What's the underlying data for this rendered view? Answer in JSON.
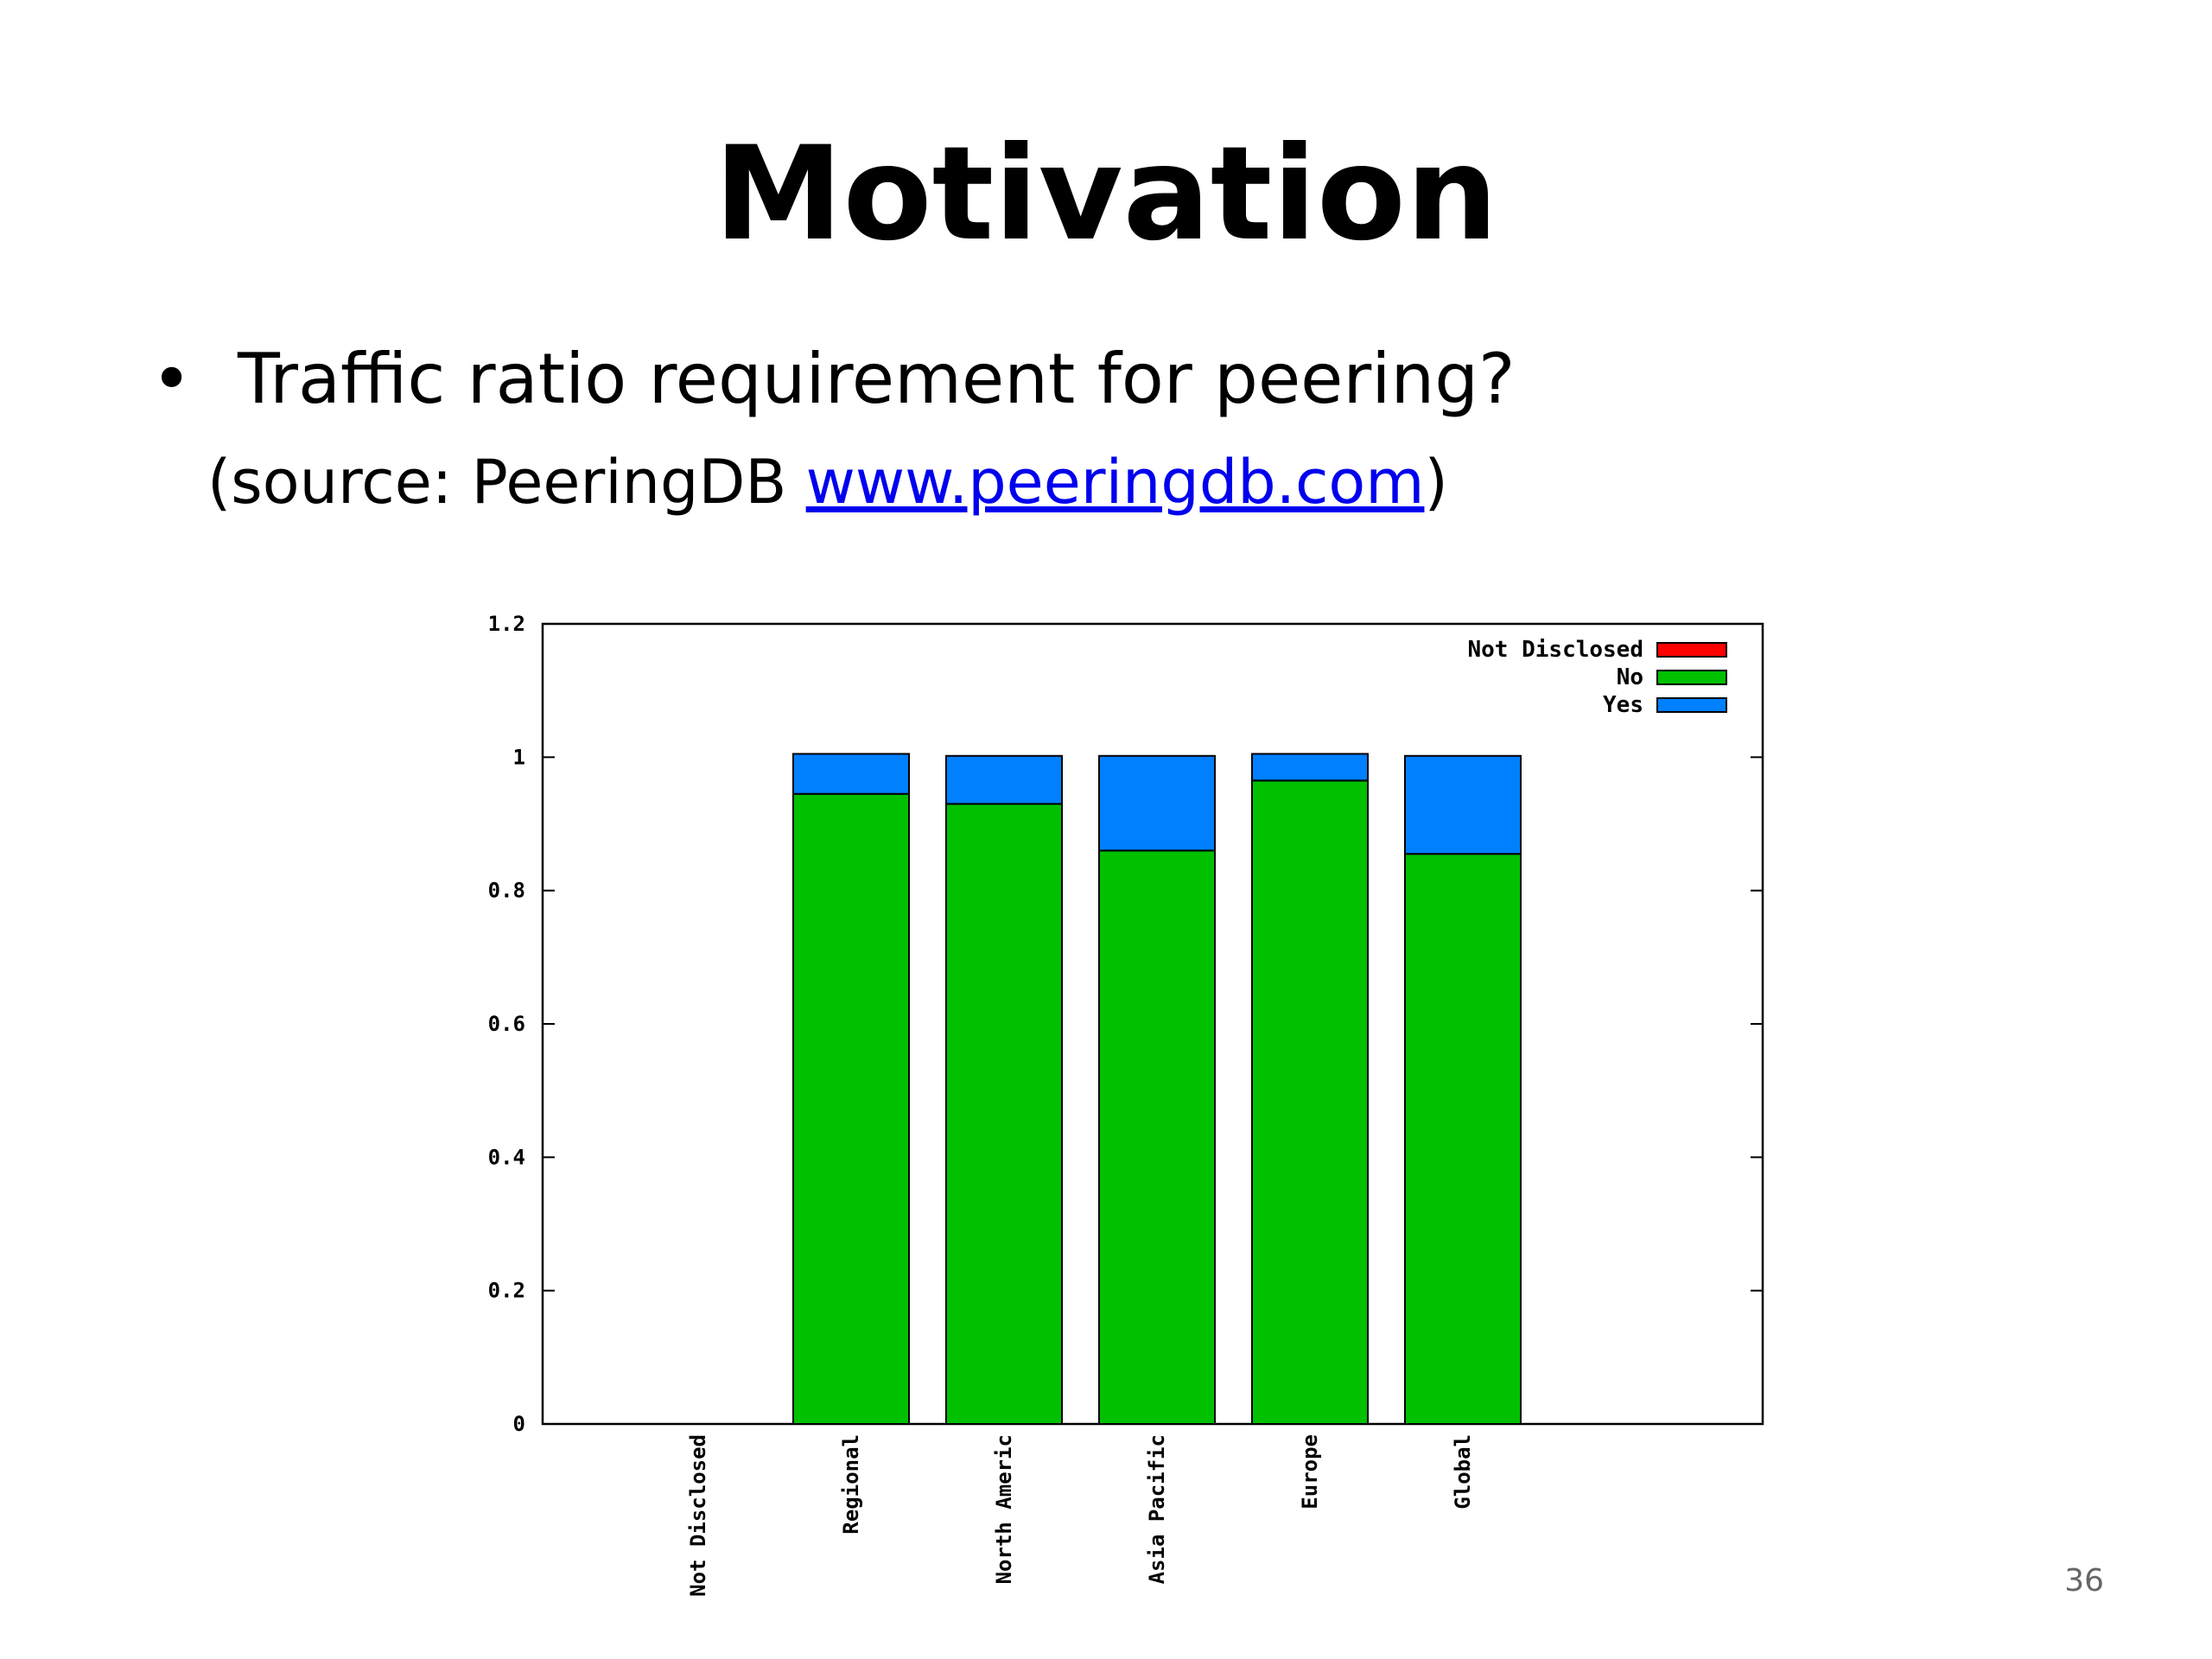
{
  "slide": {
    "title": "Motivation",
    "bullet": "Traffic ratio requirement for peering?",
    "source_prefix": "(source: PeeringDB ",
    "source_link": "www.peeringdb.com",
    "source_suffix": ")",
    "page_number": "36"
  },
  "colors": {
    "Not Disclosed": "#ff0000",
    "No": "#00c000",
    "Yes": "#0080ff"
  },
  "chart_data": {
    "type": "bar",
    "stacked": true,
    "categories": [
      "Not Disclosed",
      "Regional",
      "North America",
      "Asia Pacific",
      "Europe",
      "Global"
    ],
    "category_labels": [
      "Not Disclosed",
      "Regional",
      "North Americ",
      "Asia Pacific",
      "Europe",
      "Global"
    ],
    "series": [
      {
        "name": "No",
        "values": [
          0,
          0.945,
          0.93,
          0.86,
          0.965,
          0.855
        ]
      },
      {
        "name": "Yes",
        "values": [
          0,
          0.06,
          0.072,
          0.142,
          0.04,
          0.147
        ]
      },
      {
        "name": "Not Disclosed",
        "values": [
          0,
          0,
          0,
          0,
          0,
          0
        ]
      }
    ],
    "legend": [
      "Not Disclosed",
      "No",
      "Yes"
    ],
    "legend_position": "top-right",
    "ylim": [
      0,
      1.2
    ],
    "yticks": [
      0,
      0.2,
      0.4,
      0.6,
      0.8,
      1,
      1.2
    ],
    "ytick_labels": [
      "0",
      "0.2",
      "0.4",
      "0.6",
      "0.8",
      "1",
      "1.2"
    ],
    "grid": false,
    "title": "",
    "xlabel": "",
    "ylabel": ""
  }
}
